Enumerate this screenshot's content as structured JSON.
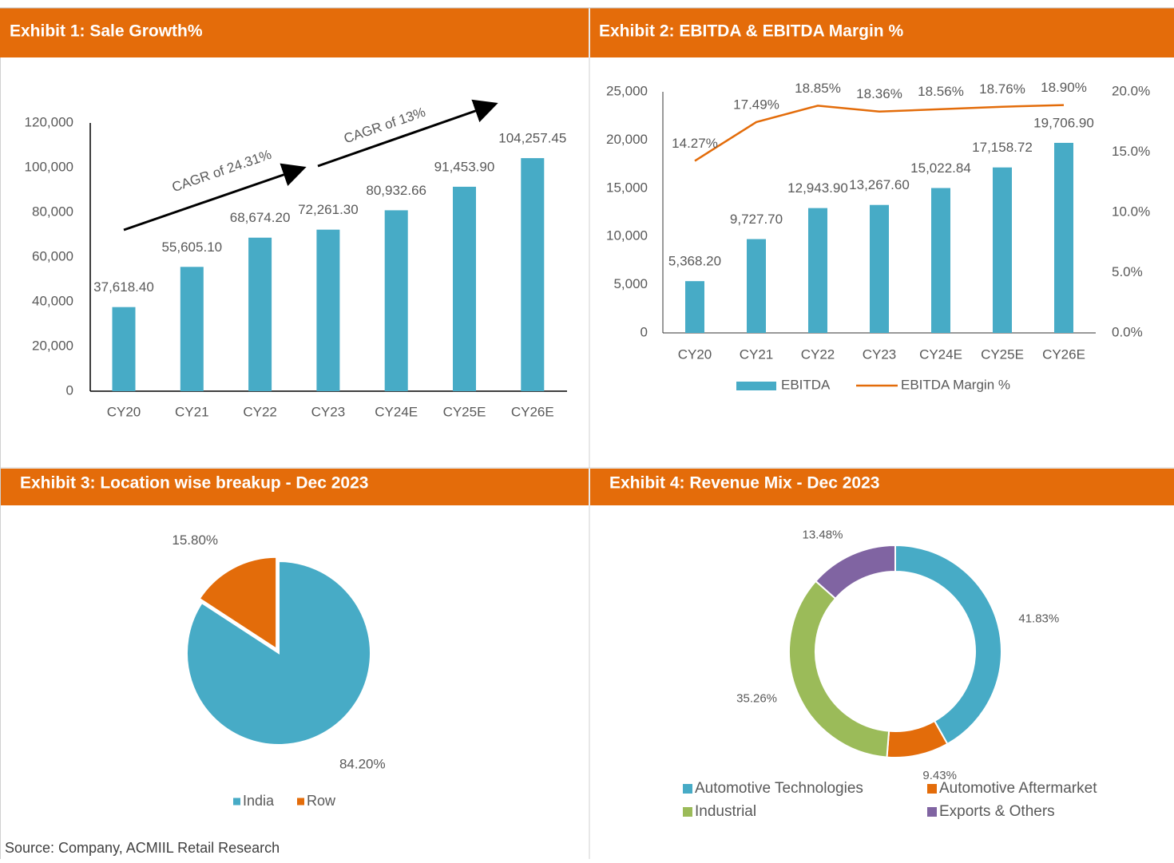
{
  "chart_data": [
    {
      "type": "bar",
      "title": "Exhibit 1: Sale Growth%",
      "categories": [
        "CY20",
        "CY21",
        "CY22",
        "CY23",
        "CY24E",
        "CY25E",
        "CY26E"
      ],
      "values": [
        37618.4,
        55605.1,
        68674.2,
        72261.3,
        80932.66,
        91453.9,
        104257.45
      ],
      "value_labels": [
        "37,618.40",
        "55,605.10",
        "68,674.20",
        "72,261.30",
        "80,932.66",
        "91,453.90",
        "104,257.45"
      ],
      "color": "#47abc6",
      "ylim": [
        0,
        120000
      ],
      "yticks": [
        0,
        {
          "value": 20000,
          "label": "20,000"
        },
        {
          "value": 40000,
          "label": "40,000"
        },
        {
          "value": 60000,
          "label": "60,000"
        },
        {
          "value": 80000,
          "label": "80,000"
        },
        {
          "value": 100000,
          "label": "100,000"
        },
        {
          "value": 120000,
          "label": "120,000"
        }
      ],
      "annotations": [
        "CAGR of 24.31%",
        "CAGR of 13%"
      ]
    },
    {
      "type": "combo",
      "title": "Exhibit 2: EBITDA & EBITDA Margin %",
      "categories": [
        "CY20",
        "CY21",
        "CY22",
        "CY23",
        "CY24E",
        "CY25E",
        "CY26E"
      ],
      "series": [
        {
          "name": "EBITDA",
          "type": "bar",
          "color": "#47abc6",
          "values": [
            5368.2,
            9727.7,
            12943.9,
            13267.6,
            15022.84,
            17158.72,
            19706.9
          ],
          "value_labels": [
            "5,368.20",
            "9,727.70",
            "12,943.90",
            "13,267.60",
            "15,022.84",
            "17,158.72",
            "19,706.90"
          ]
        },
        {
          "name": "EBITDA Margin %",
          "type": "line",
          "axis": "y2",
          "color": "#e36c0a",
          "values": [
            14.27,
            17.49,
            18.85,
            18.36,
            18.56,
            18.76,
            18.9
          ],
          "value_labels": [
            "14.27%",
            "17.49%",
            "18.85%",
            "18.36%",
            "18.56%",
            "18.76%",
            "18.90%"
          ]
        }
      ],
      "ylim": [
        0,
        25000
      ],
      "yticks": [
        0,
        {
          "value": 5000,
          "label": "5,000"
        },
        {
          "value": 10000,
          "label": "10,000"
        },
        {
          "value": 15000,
          "label": "15,000"
        },
        {
          "value": 20000,
          "label": "20,000"
        },
        {
          "value": 25000,
          "label": "25,000"
        }
      ],
      "y2lim": [
        0,
        20
      ],
      "y2ticks": [
        {
          "value": 0,
          "label": "0.0%"
        },
        {
          "value": 5,
          "label": "5.0%"
        },
        {
          "value": 10,
          "label": "10.0%"
        },
        {
          "value": 15,
          "label": "15.0%"
        },
        {
          "value": 20,
          "label": "20.0%"
        }
      ],
      "legend": "bottom"
    },
    {
      "type": "pie",
      "title": "Exhibit 3: Location wise breakup - Dec 2023",
      "categories": [
        "India",
        "Row"
      ],
      "values": [
        84.2,
        15.8
      ],
      "value_labels": [
        "84.20%",
        "15.80%"
      ],
      "colors": [
        "#47abc6",
        "#e36c0a"
      ],
      "legend": "bottom"
    },
    {
      "type": "donut",
      "title": "Exhibit 4:  Revenue Mix - Dec 2023",
      "categories": [
        "Automotive Technologies",
        "Automotive Aftermarket",
        "Industrial",
        "Exports & Others"
      ],
      "values": [
        41.83,
        9.43,
        35.26,
        13.48
      ],
      "value_labels": [
        "41.83%",
        "9.43%",
        "35.26%",
        "13.48%"
      ],
      "colors": [
        "#47abc6",
        "#e36c0a",
        "#9bbb59",
        "#8064a2"
      ],
      "legend": "bottom"
    }
  ],
  "source": "Source: Company, ACMIIL Retail Research"
}
